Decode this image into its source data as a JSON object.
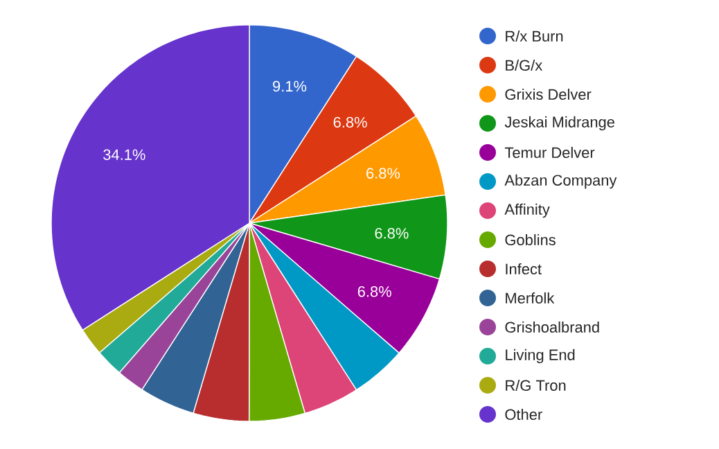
{
  "chart_data": {
    "type": "pie",
    "categories": [
      "R/x Burn",
      "B/G/x",
      "Grixis Delver",
      "Jeskai Midrange",
      "Temur Delver",
      "Abzan Company",
      "Affinity",
      "Goblins",
      "Infect",
      "Merfolk",
      "Grishoalbrand",
      "Living End",
      "R/G Tron",
      "Other"
    ],
    "values": [
      9.09,
      6.82,
      6.82,
      6.82,
      6.82,
      4.55,
      4.55,
      4.55,
      4.55,
      4.55,
      2.27,
      2.27,
      2.27,
      34.07
    ],
    "value_labels": [
      "9.1%",
      "6.8%",
      "6.8%",
      "6.8%",
      "6.8%",
      null,
      null,
      null,
      null,
      null,
      null,
      null,
      null,
      "34.1%"
    ],
    "colors": [
      "#3366cc",
      "#dc3912",
      "#ff9900",
      "#109618",
      "#990099",
      "#0099c6",
      "#dd4477",
      "#66aa00",
      "#b82e2e",
      "#316395",
      "#994499",
      "#22aa99",
      "#aaaa11",
      "#6633cc"
    ],
    "legend": "right"
  }
}
